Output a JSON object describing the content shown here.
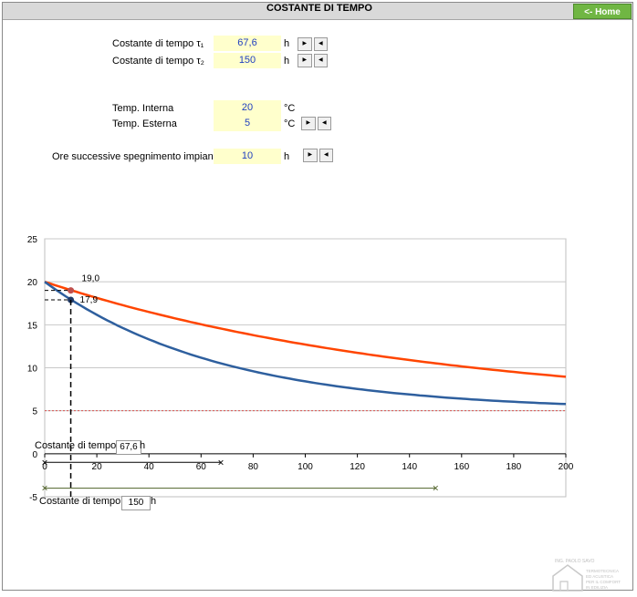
{
  "header": {
    "title": "COSTANTE DI TEMPO",
    "home_label": "<- Home"
  },
  "inputs": {
    "tau1": {
      "label": "Costante di tempo τ₁",
      "value": "67,6",
      "unit": "h"
    },
    "tau2": {
      "label": "Costante di tempo τ₂",
      "value": "150",
      "unit": "h"
    },
    "t_int": {
      "label": "Temp. Interna",
      "value": "20",
      "unit": "°C"
    },
    "t_ext": {
      "label": "Temp. Esterna",
      "value": "5",
      "unit": "°C"
    },
    "ore": {
      "label": "Ore successive spegnimento impianto",
      "value": "10",
      "unit": "h"
    }
  },
  "chart_controls": {
    "slider1_label": "Costante di tempo",
    "slider1_value": "67,6",
    "slider1_unit": "h",
    "slider2_label": "Costante di tempo",
    "slider2_value": "150",
    "slider2_unit": "h"
  },
  "logo": {
    "line1": "ING. PAOLO SAVO",
    "line2": "TERMOTECNICA",
    "line3": "ED ACUSTICA",
    "line4": "PER IL COMFORT",
    "line5": "IN EDILIZIA"
  },
  "chart_data": {
    "type": "line",
    "xlim": [
      0,
      200
    ],
    "ylim": [
      -5,
      25
    ],
    "x_ticks": [
      0,
      20,
      40,
      60,
      80,
      100,
      120,
      140,
      160,
      180,
      200
    ],
    "y_ticks": [
      25,
      20,
      15,
      10,
      5,
      0,
      -5
    ],
    "grid": true,
    "t_int": 20,
    "t_ext": 5,
    "series": [
      {
        "tau": 150,
        "color": "#ff4500"
      },
      {
        "tau": 67.6,
        "color": "#2e5f9e"
      }
    ],
    "annotations": [
      {
        "x": 10,
        "y": 19.0,
        "label": "19,0",
        "color": "#c0504d"
      },
      {
        "x": 10,
        "y": 17.9,
        "label": "17,9",
        "color": "#1f3864"
      }
    ],
    "ext_line": {
      "y": 5,
      "color": "#d9534f"
    },
    "slider_rows": [
      {
        "y": -1,
        "x_start": 0,
        "x_end": 67.6,
        "color": "#000000"
      },
      {
        "y": -4,
        "x_start": 0,
        "x_end": 150,
        "color": "#4f6228"
      }
    ]
  }
}
